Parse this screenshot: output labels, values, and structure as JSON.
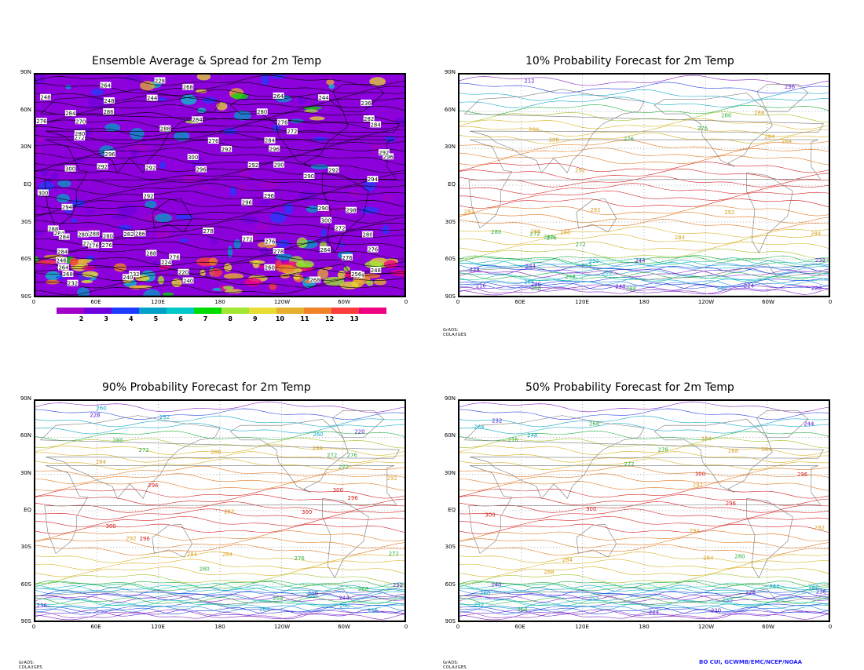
{
  "panels": [
    {
      "id": "p1",
      "title": "Ensemble Average & Spread for 2m Temp",
      "mode": "spread",
      "labels": [
        "272",
        "268",
        "268",
        "284",
        "272",
        "278",
        "276",
        "290",
        "276",
        "272",
        "276",
        "278",
        "280",
        "284",
        "268",
        "254",
        "276",
        "284",
        "296",
        "292",
        "300",
        "284",
        "280",
        "296",
        "290",
        "294",
        "284",
        "286",
        "280",
        "292",
        "284",
        "300",
        "288",
        "292",
        "296",
        "296",
        "298",
        "300",
        "288",
        "292",
        "282",
        "260",
        "270",
        "300",
        "296",
        "276",
        "288",
        "286",
        "292",
        "282",
        "276",
        "294",
        "290",
        "276",
        "264",
        "284",
        "280",
        "276",
        "280",
        "296",
        "292",
        "292",
        "264",
        "284",
        "272",
        "276",
        "276",
        "288",
        "248",
        "244",
        "232",
        "228",
        "248",
        "244",
        "256",
        "246",
        "232",
        "236",
        "240",
        "248",
        "264",
        "240",
        "224",
        "220"
      ]
    },
    {
      "id": "p2",
      "title": "10% Probability Forecast for 2m Temp",
      "mode": "prob",
      "labels": [
        "268",
        "284",
        "260",
        "252",
        "244",
        "276",
        "272",
        "268",
        "280",
        "288",
        "284",
        "276",
        "292",
        "288",
        "280",
        "284",
        "292",
        "288",
        "292",
        "292",
        "284",
        "288",
        "280",
        "276",
        "284",
        "272",
        "268",
        "264",
        "260",
        "252",
        "244",
        "240",
        "236",
        "228",
        "220",
        "212",
        "216",
        "232",
        "240",
        "224"
      ]
    },
    {
      "id": "p3",
      "title": "90% Probability Forecast for 2m Temp",
      "mode": "prob",
      "labels": [
        "272",
        "272",
        "272",
        "268",
        "276",
        "284",
        "280",
        "292",
        "300",
        "296",
        "284",
        "300",
        "296",
        "296",
        "292",
        "288",
        "284",
        "300",
        "292",
        "284",
        "280",
        "276",
        "272",
        "268",
        "260",
        "256",
        "252",
        "248",
        "244",
        "240",
        "236",
        "232",
        "228",
        "220",
        "264",
        "260",
        "252"
      ]
    },
    {
      "id": "p4",
      "title": "50% Probability Forecast for 2m Temp",
      "mode": "prob",
      "labels": [
        "268",
        "284",
        "260",
        "272",
        "276",
        "284",
        "288",
        "300",
        "300",
        "296",
        "292",
        "300",
        "292",
        "284",
        "288",
        "292",
        "296",
        "284",
        "280",
        "276",
        "268",
        "264",
        "260",
        "252",
        "248",
        "244",
        "240",
        "236",
        "232",
        "228",
        "224",
        "220",
        "260",
        "264",
        "252"
      ]
    }
  ],
  "axes": {
    "lat_labels": [
      "90N",
      "60N",
      "30N",
      "EQ",
      "30S",
      "60S",
      "90S"
    ],
    "lon_labels": [
      "0",
      "60E",
      "120E",
      "180",
      "120W",
      "60W",
      "0"
    ]
  },
  "colorbar": {
    "colors": [
      "#a000c8",
      "#6e00dc",
      "#1e3cff",
      "#00a0c8",
      "#00c8c8",
      "#00dc00",
      "#a0e632",
      "#e6dc32",
      "#e6af2d",
      "#f08228",
      "#fa3c3c",
      "#f00082"
    ],
    "labels": [
      "2",
      "3",
      "4",
      "5",
      "6",
      "7",
      "8",
      "9",
      "10",
      "11",
      "12",
      "13"
    ]
  },
  "credit": "GrADS: COLA/IGES",
  "attribution": "BO CUI, GCWMB/EMC/NCEP/NOAA"
}
